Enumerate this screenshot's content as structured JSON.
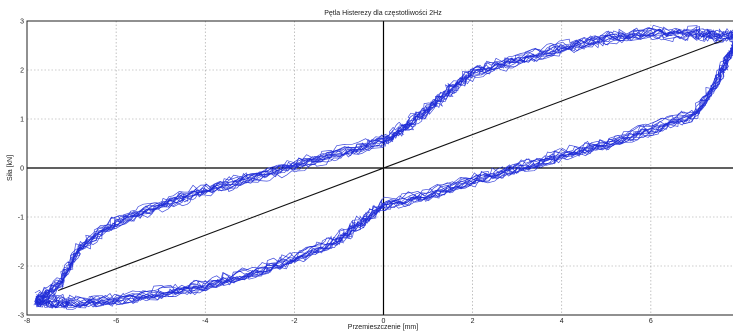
{
  "chart_data": {
    "type": "line",
    "title": "Pętla Histerezy dla częstotliwości 2Hz",
    "xlabel": "Przemieszczenie [mm]",
    "ylabel": "Siła [kN]",
    "xlim": [
      -8,
      8
    ],
    "ylim": [
      -3,
      3
    ],
    "xticks": [
      -8,
      -6,
      -4,
      -2,
      0,
      2,
      4,
      6
    ],
    "yticks": [
      -3,
      -2,
      -1,
      0,
      1,
      2,
      3
    ],
    "grid": true,
    "colors": {
      "loop": "#1f2bd6",
      "fit": "#111111",
      "grid": "#9a9a9a"
    },
    "series": [
      {
        "role": "hysteresis-loop-upper",
        "x": [
          -7.8,
          -7.3,
          -6.8,
          -6.0,
          -5.0,
          -4.0,
          -3.0,
          -2.0,
          -1.0,
          0.0,
          0.5,
          1.0,
          1.5,
          2.0,
          3.0,
          4.0,
          5.0,
          6.0,
          7.0,
          7.5,
          8.0
        ],
        "y": [
          -2.7,
          -2.4,
          -1.6,
          -1.1,
          -0.75,
          -0.45,
          -0.2,
          0.05,
          0.3,
          0.55,
          0.85,
          1.2,
          1.6,
          1.95,
          2.2,
          2.45,
          2.65,
          2.75,
          2.75,
          2.7,
          2.7
        ]
      },
      {
        "role": "hysteresis-loop-lower",
        "x": [
          8.0,
          7.8,
          7.5,
          7.0,
          6.0,
          5.0,
          4.0,
          3.0,
          2.0,
          1.0,
          0.0,
          -0.5,
          -1.0,
          -2.0,
          -3.0,
          -4.0,
          -5.0,
          -6.0,
          -7.0,
          -7.5,
          -7.8
        ],
        "y": [
          2.7,
          2.4,
          1.8,
          1.1,
          0.8,
          0.5,
          0.25,
          0.0,
          -0.25,
          -0.55,
          -0.75,
          -1.1,
          -1.45,
          -1.85,
          -2.15,
          -2.4,
          -2.55,
          -2.7,
          -2.75,
          -2.72,
          -2.7
        ]
      },
      {
        "role": "linear-fit",
        "x": [
          -7.3,
          7.6
        ],
        "y": [
          -2.5,
          2.6
        ]
      }
    ]
  }
}
